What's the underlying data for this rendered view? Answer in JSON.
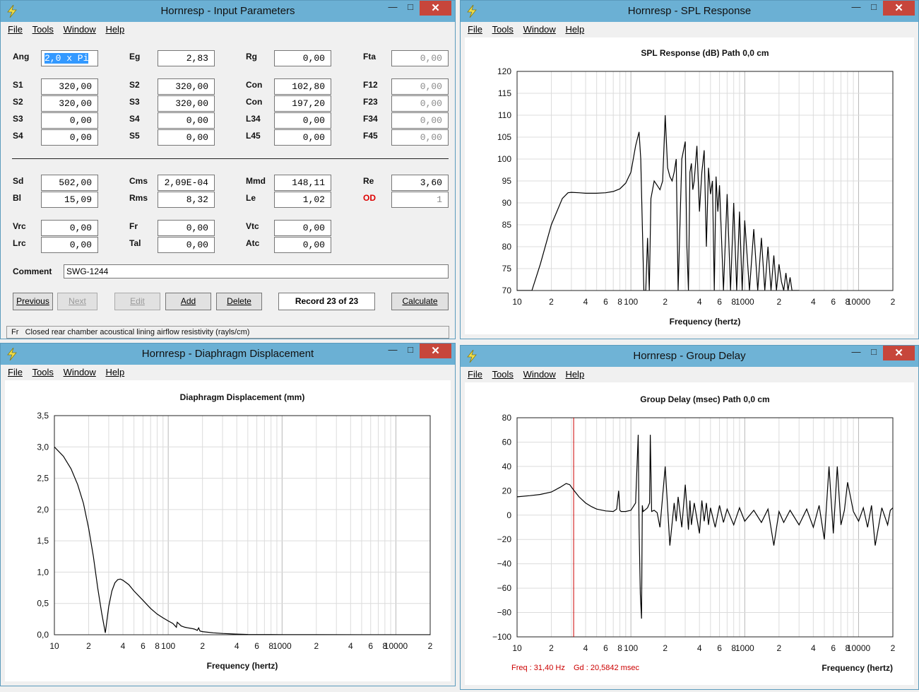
{
  "menu": {
    "file": "File",
    "tools": "Tools",
    "window": "Window",
    "help": "Help"
  },
  "input_window": {
    "title": "Hornresp - Input Parameters",
    "fields": [
      {
        "label": "Ang",
        "value": "2,0 x Pi",
        "selected": true
      },
      {
        "label": "Eg",
        "value": "2,83"
      },
      {
        "label": "Rg",
        "value": "0,00"
      },
      {
        "label": "Fta",
        "value": "0,00",
        "disabled": true
      },
      {
        "label": "S1",
        "value": "320,00"
      },
      {
        "label": "S2",
        "value": "320,00"
      },
      {
        "label": "Con",
        "value": "102,80"
      },
      {
        "label": "F12",
        "value": "0,00",
        "disabled": true
      },
      {
        "label": "S2",
        "value": "320,00"
      },
      {
        "label": "S3",
        "value": "320,00"
      },
      {
        "label": "Con",
        "value": "197,20"
      },
      {
        "label": "F23",
        "value": "0,00",
        "disabled": true
      },
      {
        "label": "S3",
        "value": "0,00"
      },
      {
        "label": "S4",
        "value": "0,00"
      },
      {
        "label": "L34",
        "value": "0,00"
      },
      {
        "label": "F34",
        "value": "0,00",
        "disabled": true
      },
      {
        "label": "S4",
        "value": "0,00"
      },
      {
        "label": "S5",
        "value": "0,00"
      },
      {
        "label": "L45",
        "value": "0,00"
      },
      {
        "label": "F45",
        "value": "0,00",
        "disabled": true
      },
      {
        "label": "Sd",
        "value": "502,00"
      },
      {
        "label": "Cms",
        "value": "2,09E-04"
      },
      {
        "label": "Mmd",
        "value": "148,11"
      },
      {
        "label": "Re",
        "value": "3,60"
      },
      {
        "label": "Bl",
        "value": "15,09"
      },
      {
        "label": "Rms",
        "value": "8,32"
      },
      {
        "label": "Le",
        "value": "1,02"
      },
      {
        "label": "OD",
        "value": "1",
        "disabled": true,
        "red": true
      },
      {
        "label": "Vrc",
        "value": "0,00"
      },
      {
        "label": "Fr",
        "value": "0,00"
      },
      {
        "label": "Vtc",
        "value": "0,00"
      },
      {
        "label": "Lrc",
        "value": "0,00"
      },
      {
        "label": "Tal",
        "value": "0,00"
      },
      {
        "label": "Atc",
        "value": "0,00"
      }
    ],
    "comment_label": "Comment",
    "comment_value": "SWG-1244",
    "buttons": {
      "previous": "Previous",
      "next": "Next",
      "edit": "Edit",
      "add": "Add",
      "delete": "Delete",
      "calculate": "Calculate"
    },
    "record": "Record 23 of 23",
    "status_key": "Fr",
    "status_text": "Closed rear chamber acoustical lining airflow resistivity  (rayls/cm)"
  },
  "spl_window": {
    "title": "Hornresp - SPL Response",
    "chart_data": {
      "type": "line",
      "title": "SPL Response (dB)   Path 0,0 cm",
      "xlabel": "Frequency (hertz)",
      "ylabel": "",
      "xscale": "log",
      "xlim": [
        10,
        20000
      ],
      "ylim": [
        70,
        120
      ],
      "yticks": [
        "120",
        "115",
        "110",
        "105",
        "100",
        "95",
        "90",
        "85",
        "80",
        "75",
        "70"
      ],
      "xticks": [
        "10",
        "2",
        "4",
        "6",
        "8",
        "100",
        "2",
        "4",
        "6",
        "8",
        "1000",
        "2",
        "4",
        "6",
        "8",
        "10000",
        "2"
      ],
      "series": [
        {
          "x": [
            10,
            13.5,
            16,
            20,
            25,
            28,
            30,
            35,
            40,
            50,
            60,
            70,
            80,
            90,
            100,
            110,
            118,
            122,
            126,
            130,
            135,
            140,
            145,
            150,
            160,
            170,
            180,
            190,
            200,
            210,
            220,
            230,
            240,
            250,
            260,
            280,
            300,
            310,
            320,
            330,
            340,
            350,
            360,
            380,
            400,
            420,
            440,
            460,
            480,
            500,
            520,
            540,
            560,
            580,
            600,
            650,
            700,
            750,
            800,
            850,
            900,
            950,
            1000,
            1100,
            1200,
            1300,
            1400,
            1500,
            1600,
            1700,
            1800,
            1900,
            2000,
            2100,
            2200,
            2300,
            2400,
            2500,
            2600,
            2800,
            3000
          ],
          "values": [
            70,
            70,
            76,
            85,
            91,
            92.3,
            92.4,
            92.3,
            92.2,
            92.2,
            92.3,
            92.6,
            93.2,
            94.5,
            97,
            103,
            106.2,
            100,
            85,
            70,
            70,
            82,
            70,
            91,
            95,
            94,
            93,
            95,
            110,
            98,
            96,
            95,
            97,
            100,
            70,
            100,
            104,
            80,
            70,
            97,
            99,
            93,
            95,
            103,
            88,
            97,
            102,
            80,
            98,
            92,
            95,
            70,
            96,
            88,
            94,
            70,
            92,
            70,
            90,
            70,
            88,
            70,
            86,
            70,
            84,
            70,
            82,
            70,
            80,
            70,
            78,
            70,
            76,
            72,
            70,
            74,
            70,
            73,
            70,
            70,
            70
          ]
        }
      ]
    }
  },
  "disp_window": {
    "title": "Hornresp - Diaphragm Displacement",
    "chart_data": {
      "type": "line",
      "title": "Diaphragm Displacement (mm)",
      "xlabel": "Frequency (hertz)",
      "ylabel": "",
      "xscale": "log",
      "xlim": [
        10,
        20000
      ],
      "ylim": [
        0,
        3.5
      ],
      "yticks": [
        "3,5",
        "3,0",
        "2,5",
        "2,0",
        "1,5",
        "1,0",
        "0,5",
        "0,0"
      ],
      "xticks": [
        "10",
        "2",
        "4",
        "6",
        "8",
        "100",
        "2",
        "4",
        "6",
        "8",
        "1000",
        "2",
        "4",
        "6",
        "8",
        "10000",
        "2"
      ],
      "series": [
        {
          "x": [
            10,
            12,
            14,
            16,
            18,
            20,
            22,
            24,
            26,
            28,
            30,
            32,
            34,
            36,
            38,
            40,
            45,
            50,
            60,
            70,
            80,
            90,
            100,
            110,
            118,
            120,
            125,
            130,
            140,
            150,
            160,
            170,
            180,
            185,
            190,
            200,
            250,
            300,
            400,
            500,
            800,
            1000,
            2000,
            5000,
            10000,
            20000
          ],
          "values": [
            3.0,
            2.85,
            2.65,
            2.4,
            2.1,
            1.7,
            1.25,
            0.75,
            0.35,
            0.03,
            0.45,
            0.7,
            0.83,
            0.88,
            0.89,
            0.87,
            0.8,
            0.7,
            0.55,
            0.42,
            0.33,
            0.27,
            0.22,
            0.18,
            0.12,
            0.2,
            0.17,
            0.14,
            0.12,
            0.11,
            0.1,
            0.09,
            0.07,
            0.11,
            0.06,
            0.05,
            0.03,
            0.02,
            0.01,
            0.005,
            0.003,
            0.002,
            0.001,
            0.0,
            0.0,
            0.0
          ]
        }
      ]
    }
  },
  "gd_window": {
    "title": "Hornresp - Group Delay",
    "readout_freq": "Freq : 31,40 Hz",
    "readout_gd": "Gd : 20,5842 msec",
    "chart_data": {
      "type": "line",
      "title": "Group Delay (msec)   Path 0,0 cm",
      "xlabel": "Frequency (hertz)",
      "ylabel": "",
      "xscale": "log",
      "xlim": [
        10,
        20000
      ],
      "ylim": [
        -100,
        80
      ],
      "yticks": [
        "80",
        "60",
        "40",
        "20",
        "0",
        "−20",
        "−40",
        "−60",
        "−80",
        "−100"
      ],
      "xticks": [
        "10",
        "2",
        "4",
        "6",
        "8",
        "100",
        "2",
        "4",
        "6",
        "8",
        "1000",
        "2",
        "4",
        "6",
        "8",
        "10000",
        "2"
      ],
      "cursor_x": 31.4,
      "series": [
        {
          "x": [
            10,
            13,
            16,
            20,
            24,
            27,
            29,
            31.4,
            35,
            40,
            45,
            50,
            60,
            70,
            75,
            78,
            80,
            82,
            90,
            100,
            110,
            116,
            118,
            121,
            124,
            126,
            128,
            132,
            140,
            146,
            148,
            152,
            160,
            170,
            180,
            200,
            220,
            240,
            250,
            260,
            280,
            300,
            320,
            330,
            340,
            360,
            400,
            420,
            440,
            460,
            480,
            500,
            550,
            600,
            650,
            700,
            800,
            900,
            1000,
            1200,
            1400,
            1600,
            1800,
            2000,
            2200,
            2500,
            3000,
            3500,
            4000,
            4500,
            5000,
            5500,
            6000,
            6500,
            7000,
            7500,
            8000,
            9000,
            10000,
            11000,
            12000,
            13000,
            14000,
            16000,
            18000,
            19000,
            20000
          ],
          "values": [
            15,
            16,
            17,
            19,
            23,
            26,
            25,
            20.6,
            15,
            10,
            7,
            5,
            3.5,
            3,
            5,
            20,
            4,
            3,
            3,
            4,
            10,
            66,
            -10,
            -65,
            -85,
            8,
            3,
            4,
            6,
            10,
            66,
            3,
            4,
            2,
            -10,
            40,
            -25,
            10,
            -5,
            15,
            -10,
            25,
            -12,
            12,
            -8,
            10,
            -15,
            12,
            -5,
            10,
            -8,
            6,
            -10,
            8,
            -6,
            5,
            -8,
            6,
            -5,
            4,
            -6,
            5,
            -25,
            3,
            -6,
            4,
            -8,
            5,
            -10,
            8,
            -20,
            40,
            -15,
            40,
            -8,
            4,
            27,
            3,
            -5,
            6,
            -10,
            8,
            -25,
            6,
            -8,
            4,
            6
          ]
        }
      ]
    }
  }
}
